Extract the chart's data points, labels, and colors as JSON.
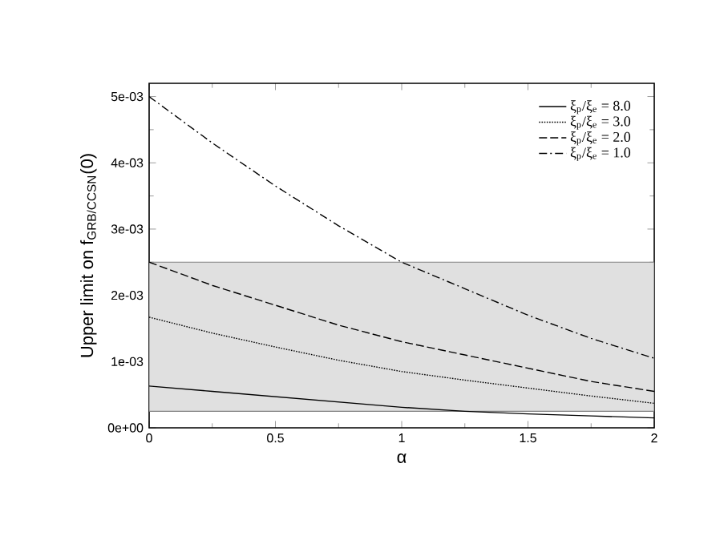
{
  "chart_data": {
    "type": "line",
    "xlabel": "α",
    "ylabel": "Upper limit on f$_{GRB/CCSN}$(0)",
    "x": [
      0,
      0.25,
      0.5,
      0.75,
      1,
      1.25,
      1.5,
      1.75,
      2
    ],
    "series": [
      {
        "name": "ξ$_{p}$/ξ$_{e}$ = 8.0",
        "color": "#000000",
        "line_style": "solid",
        "values": [
          0.00063,
          0.00055,
          0.00047,
          0.00039,
          0.00031,
          0.00025,
          0.00021,
          0.00018,
          0.00015
        ]
      },
      {
        "name": "ξ$_{p}$/ξ$_{e}$ = 3.0",
        "color": "#000000",
        "line_style": "dotted",
        "values": [
          0.00167,
          0.00143,
          0.00122,
          0.00102,
          0.00085,
          0.00072,
          0.0006,
          0.00048,
          0.00037
        ]
      },
      {
        "name": "ξ$_{p}$/ξ$_{e}$ = 2.0",
        "color": "#000000",
        "line_style": "dashed",
        "values": [
          0.0025,
          0.00215,
          0.00185,
          0.00155,
          0.0013,
          0.0011,
          0.0009,
          0.0007,
          0.00055
        ]
      },
      {
        "name": "ξ$_{p}$/ξ$_{e}$ = 1.0",
        "color": "#000000",
        "line_style": "dashdot",
        "values": [
          0.005,
          0.0043,
          0.00365,
          0.00305,
          0.0025,
          0.0021,
          0.0017,
          0.00135,
          0.00105
        ]
      }
    ],
    "xlim": [
      0,
      2
    ],
    "ylim": [
      0,
      0.0052
    ],
    "xticks": [
      0,
      0.5,
      1,
      1.5,
      2
    ],
    "yticks": [
      {
        "value": 0,
        "label": "0e+00"
      },
      {
        "value": 0.001,
        "label": "1e-03"
      },
      {
        "value": 0.002,
        "label": "2e-03"
      },
      {
        "value": 0.003,
        "label": "3e-03"
      },
      {
        "value": 0.004,
        "label": "4e-03"
      },
      {
        "value": 0.005,
        "label": "5e-03"
      }
    ],
    "bands": [
      {
        "axis": "y",
        "from": 0.00025,
        "to": 0.0025,
        "color": "#e0e0e0"
      }
    ],
    "grid": false,
    "legend": "top right",
    "marker": "none"
  }
}
